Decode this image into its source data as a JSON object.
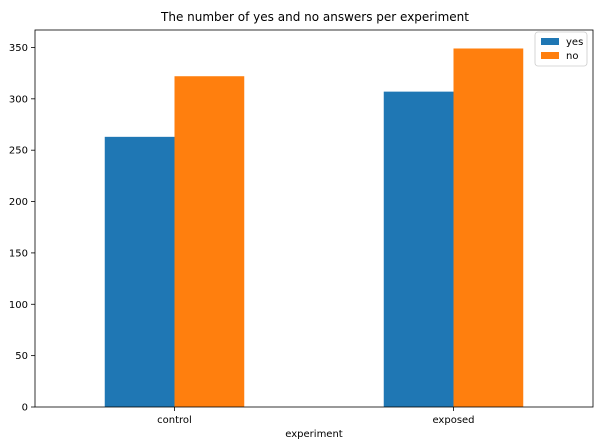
{
  "chart_data": {
    "type": "bar",
    "title": "The number of yes and no answers per experiment",
    "xlabel": "experiment",
    "ylabel": "",
    "categories": [
      "control",
      "exposed"
    ],
    "series": [
      {
        "name": "yes",
        "values": [
          263,
          307
        ],
        "color": "#1f77b4"
      },
      {
        "name": "no",
        "values": [
          322,
          349
        ],
        "color": "#ff7f0e"
      }
    ],
    "ylim": [
      0,
      367
    ],
    "yticks": [
      0,
      50,
      100,
      150,
      200,
      250,
      300,
      350
    ],
    "grid": false,
    "legend_position": "top-right"
  }
}
